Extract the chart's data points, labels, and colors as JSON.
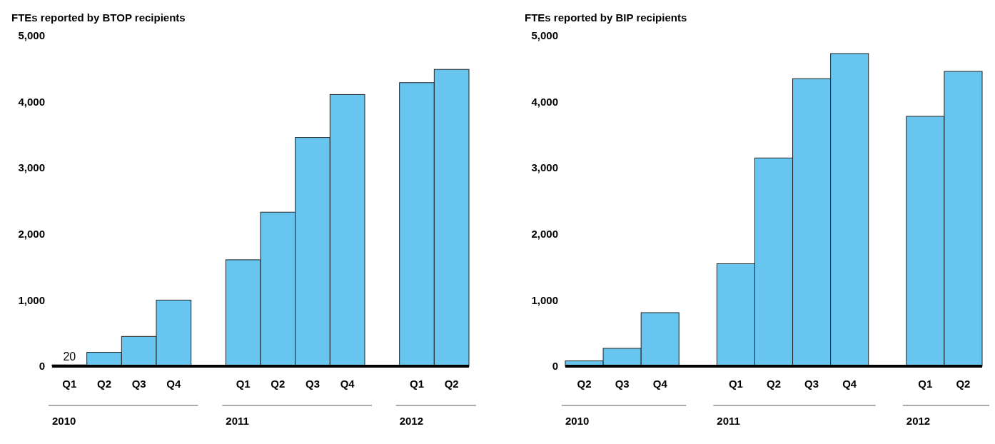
{
  "chart_data": [
    {
      "type": "bar",
      "title": "FTEs reported by BTOP recipients",
      "categories": [
        "Q1",
        "Q2",
        "Q3",
        "Q4",
        null,
        "Q1",
        "Q2",
        "Q3",
        "Q4",
        null,
        "Q1",
        "Q2"
      ],
      "values": [
        20,
        210,
        450,
        1000,
        null,
        1610,
        2330,
        3460,
        4110,
        null,
        4290,
        4490
      ],
      "value_labels": [
        "20",
        null,
        null,
        null,
        null,
        null,
        null,
        null,
        null,
        null,
        null,
        null
      ],
      "color": "#67c5ef",
      "ylim": [
        0,
        5000
      ],
      "yticks": [
        {
          "value": 0,
          "label": "0"
        },
        {
          "value": 1000,
          "label": "1,000"
        },
        {
          "value": 2000,
          "label": "2,000"
        },
        {
          "value": 3000,
          "label": "3,000"
        },
        {
          "value": 4000,
          "label": "4,000"
        },
        {
          "value": 5000,
          "label": "5,000"
        }
      ],
      "annotations": [
        "2010",
        "2011",
        "2012"
      ]
    },
    {
      "type": "bar",
      "title": "FTEs reported by BIP recipients",
      "categories": [
        "Q2",
        "Q3",
        "Q4",
        null,
        "Q1",
        "Q2",
        "Q3",
        "Q4",
        null,
        "Q1",
        "Q2"
      ],
      "values": [
        80,
        270,
        810,
        null,
        1550,
        3150,
        4350,
        4730,
        null,
        3780,
        4460
      ],
      "color": "#67c5ef",
      "ylim": [
        0,
        5000
      ],
      "yticks": [
        {
          "value": 0,
          "label": "0"
        },
        {
          "value": 1000,
          "label": "1,000"
        },
        {
          "value": 2000,
          "label": "2,000"
        },
        {
          "value": 3000,
          "label": "3,000"
        },
        {
          "value": 4000,
          "label": "4,000"
        },
        {
          "value": 5000,
          "label": "5,000"
        }
      ],
      "annotations": [
        "2010",
        "2011",
        "2012"
      ]
    }
  ]
}
